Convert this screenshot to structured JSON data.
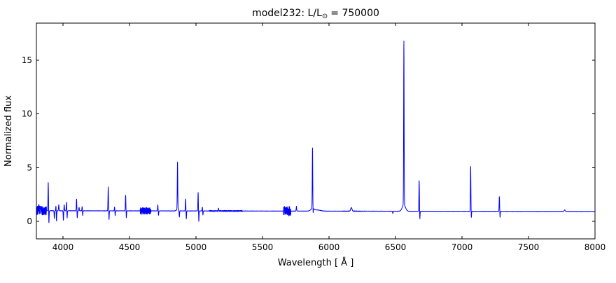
{
  "chart": {
    "title_prefix": "model232: L/L",
    "title_sub": "⊙",
    "title_suffix": "= 750000",
    "title_full": "model232: L/L⊙ = 750000",
    "xlabel": "Wavelength [ Å ]",
    "ylabel": "Normalized flux",
    "line_color": "#0000ff",
    "frame_color": "#000000",
    "background_color": "#ffffff",
    "xticks": [
      4000,
      4500,
      5000,
      5500,
      6000,
      6500,
      7000,
      7500,
      8000
    ],
    "yticks": [
      0,
      5,
      10,
      15
    ]
  },
  "chart_data": {
    "type": "line",
    "title": "model232: L/L⊙ = 750000",
    "xlabel": "Wavelength [ Å ]",
    "ylabel": "Normalized flux",
    "legend": "none",
    "grid": false,
    "xlim": [
      3800,
      8000
    ],
    "ylim": [
      -1.63,
      18.46
    ],
    "continuum": {
      "flux_at_3800": 0.99,
      "flux_at_8000": 0.92
    },
    "emission_lines": [
      {
        "wl": 3819,
        "peak": 1.6
      },
      {
        "wl": 3889,
        "peak": 3.65
      },
      {
        "wl": 3947,
        "peak": 1.45
      },
      {
        "wl": 3968,
        "peak": 1.55
      },
      {
        "wl": 4009,
        "peak": 1.55
      },
      {
        "wl": 4026,
        "peak": 1.8
      },
      {
        "wl": 4102,
        "peak": 2.1
      },
      {
        "wl": 4121,
        "peak": 1.3
      },
      {
        "wl": 4144,
        "peak": 1.4
      },
      {
        "wl": 4340,
        "peak": 3.2
      },
      {
        "wl": 4388,
        "peak": 1.35
      },
      {
        "wl": 4471,
        "peak": 2.45
      },
      {
        "wl": 4713,
        "peak": 1.55
      },
      {
        "wl": 4861,
        "peak": 5.55,
        "broad": {
          "amp": 0.12,
          "sigma": 9
        }
      },
      {
        "wl": 4922,
        "peak": 2.1
      },
      {
        "wl": 5016,
        "peak": 2.7
      },
      {
        "wl": 5048,
        "peak": 1.35
      },
      {
        "wl": 5169,
        "peak": 1.2
      },
      {
        "wl": 5755,
        "peak": 1.4
      },
      {
        "wl": 5876,
        "peak": 6.85,
        "broad": {
          "amp": 0.22,
          "sigma": 13
        }
      },
      {
        "wl": 6168,
        "peak": 1.28,
        "sigma": 5
      },
      {
        "wl": 6563,
        "peak": 16.9,
        "broad": {
          "amp": 0.6,
          "sigma": 12
        }
      },
      {
        "wl": 6678,
        "peak": 3.85
      },
      {
        "wl": 7065,
        "peak": 5.15
      },
      {
        "wl": 7281,
        "peak": 2.3
      },
      {
        "wl": 7772,
        "peak": 1.06,
        "sigma": 4
      }
    ],
    "absorption_dips": [
      {
        "wl": 3894,
        "min": -0.2
      },
      {
        "wl": 3935,
        "min": 0.25
      },
      {
        "wl": 3951,
        "min": 0.0
      },
      {
        "wl": 4003,
        "min": 0.1
      },
      {
        "wl": 4031,
        "min": 0.3
      },
      {
        "wl": 4107,
        "min": 0.3
      },
      {
        "wl": 4148,
        "min": 0.5
      },
      {
        "wl": 4346,
        "min": 0.15
      },
      {
        "wl": 4392,
        "min": 0.5
      },
      {
        "wl": 4476,
        "min": 0.3
      },
      {
        "wl": 4718,
        "min": 0.55
      },
      {
        "wl": 4875,
        "min": 0.35
      },
      {
        "wl": 4927,
        "min": 0.2
      },
      {
        "wl": 5021,
        "min": -0.05
      },
      {
        "wl": 5052,
        "min": 0.55
      },
      {
        "wl": 5880,
        "min": 0.35
      },
      {
        "wl": 6480,
        "min": 0.72
      },
      {
        "wl": 6683,
        "min": 0.2
      },
      {
        "wl": 7070,
        "min": 0.3
      },
      {
        "wl": 7286,
        "min": 0.35
      }
    ],
    "broad_bumps": [
      {
        "wl": 5915,
        "amp": 0.1,
        "sigma": 22
      }
    ],
    "noise_regions": [
      {
        "from": 3800,
        "to": 3876,
        "amp": 0.42
      },
      {
        "from": 4580,
        "to": 4662,
        "amp": 0.32
      },
      {
        "from": 5100,
        "to": 5350,
        "amp": 0.05
      },
      {
        "from": 5658,
        "to": 5713,
        "amp": 0.45
      },
      {
        "from": 6100,
        "to": 6250,
        "amp": 0.02
      }
    ],
    "base_noise": 0.012
  }
}
